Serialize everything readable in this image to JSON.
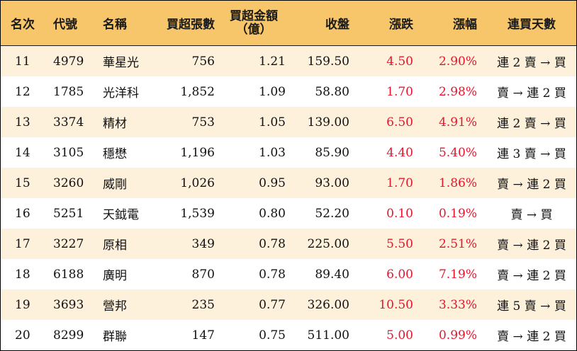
{
  "headers": {
    "rank": "名次",
    "code": "代號",
    "name": "名稱",
    "net_buy_lots": "買超張數",
    "net_buy_amount_line1": "買超金額",
    "net_buy_amount_line2": "（億）",
    "close": "收盤",
    "change": "漲跌",
    "pct": "漲幅",
    "streak": "連買天數"
  },
  "rows": [
    {
      "rank": "11",
      "code": "4979",
      "name": "華星光",
      "lots": "756",
      "amount": "1.21",
      "close": "159.50",
      "change": "4.50",
      "pct": "2.90%",
      "streak": "連 2 賣 → 買"
    },
    {
      "rank": "12",
      "code": "1785",
      "name": "光洋科",
      "lots": "1,852",
      "amount": "1.09",
      "close": "58.80",
      "change": "1.70",
      "pct": "2.98%",
      "streak": "賣 → 連 2 買"
    },
    {
      "rank": "13",
      "code": "3374",
      "name": "精材",
      "lots": "753",
      "amount": "1.05",
      "close": "139.00",
      "change": "6.50",
      "pct": "4.91%",
      "streak": "連 2 賣 → 買"
    },
    {
      "rank": "14",
      "code": "3105",
      "name": "穩懋",
      "lots": "1,196",
      "amount": "1.03",
      "close": "85.90",
      "change": "4.40",
      "pct": "5.40%",
      "streak": "連 3 賣 → 買"
    },
    {
      "rank": "15",
      "code": "3260",
      "name": "威剛",
      "lots": "1,026",
      "amount": "0.95",
      "close": "93.00",
      "change": "1.70",
      "pct": "1.86%",
      "streak": "賣 → 連 2 買"
    },
    {
      "rank": "16",
      "code": "5251",
      "name": "天鉞電",
      "lots": "1,539",
      "amount": "0.80",
      "close": "52.20",
      "change": "0.10",
      "pct": "0.19%",
      "streak": "賣 → 買"
    },
    {
      "rank": "17",
      "code": "3227",
      "name": "原相",
      "lots": "349",
      "amount": "0.78",
      "close": "225.00",
      "change": "5.50",
      "pct": "2.51%",
      "streak": "賣 → 連 2 買"
    },
    {
      "rank": "18",
      "code": "6188",
      "name": "廣明",
      "lots": "870",
      "amount": "0.78",
      "close": "89.40",
      "change": "6.00",
      "pct": "7.19%",
      "streak": "賣 → 連 2 買"
    },
    {
      "rank": "19",
      "code": "3693",
      "name": "營邦",
      "lots": "235",
      "amount": "0.77",
      "close": "326.00",
      "change": "10.50",
      "pct": "3.33%",
      "streak": "連 5 賣 → 買"
    },
    {
      "rank": "20",
      "code": "8299",
      "name": "群聯",
      "lots": "147",
      "amount": "0.75",
      "close": "511.00",
      "change": "5.00",
      "pct": "0.99%",
      "streak": "賣 → 連 2 買"
    }
  ],
  "colors": {
    "header_bg": "#f7c66a",
    "odd_row_bg": "#fdf1dc",
    "even_row_bg": "#ffffff",
    "up_red": "#e8142c",
    "text": "#111111"
  }
}
